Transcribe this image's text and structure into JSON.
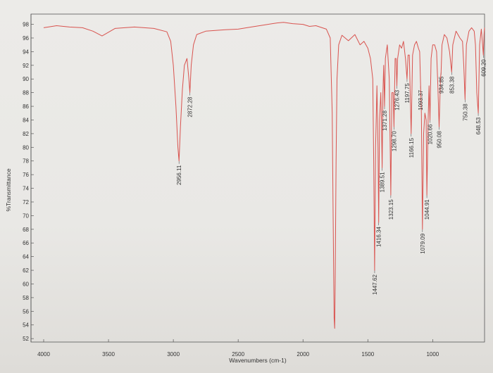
{
  "chart_data": {
    "type": "line",
    "title": "",
    "xlabel": "Wavenumbers (cm-1)",
    "ylabel": "%Transmittance",
    "xlim": [
      4000,
      600
    ],
    "ylim": [
      51.5,
      99.5
    ],
    "x_ticks": [
      4000,
      3500,
      3000,
      2500,
      2000,
      1500,
      1000
    ],
    "y_ticks": [
      52,
      54,
      56,
      58,
      60,
      62,
      64,
      66,
      68,
      70,
      72,
      74,
      76,
      78,
      80,
      82,
      84,
      86,
      88,
      90,
      92,
      94,
      96,
      98
    ],
    "grid": false,
    "line_color": "#d9534f",
    "series": [
      {
        "name": "",
        "points": [
          [
            4000,
            97.5
          ],
          [
            3900,
            97.8
          ],
          [
            3800,
            97.6
          ],
          [
            3700,
            97.5
          ],
          [
            3620,
            97.0
          ],
          [
            3550,
            96.3
          ],
          [
            3450,
            97.4
          ],
          [
            3300,
            97.6
          ],
          [
            3150,
            97.4
          ],
          [
            3050,
            96.9
          ],
          [
            3020,
            95.5
          ],
          [
            3000,
            92.0
          ],
          [
            2980,
            86.0
          ],
          [
            2965,
            80.0
          ],
          [
            2956.11,
            78.0
          ],
          [
            2945,
            83.0
          ],
          [
            2930,
            88.5
          ],
          [
            2915,
            92.0
          ],
          [
            2895,
            93.0
          ],
          [
            2880,
            90.0
          ],
          [
            2872.28,
            88.0
          ],
          [
            2862,
            92.0
          ],
          [
            2845,
            95.0
          ],
          [
            2820,
            96.5
          ],
          [
            2750,
            97.0
          ],
          [
            2600,
            97.2
          ],
          [
            2500,
            97.3
          ],
          [
            2400,
            97.6
          ],
          [
            2300,
            97.9
          ],
          [
            2200,
            98.2
          ],
          [
            2150,
            98.3
          ],
          [
            2080,
            98.1
          ],
          [
            2000,
            98.0
          ],
          [
            1950,
            97.7
          ],
          [
            1900,
            97.8
          ],
          [
            1820,
            97.3
          ],
          [
            1790,
            96.0
          ],
          [
            1775,
            85.0
          ],
          [
            1768,
            70.0
          ],
          [
            1760,
            55.0
          ],
          [
            1756,
            53.5
          ],
          [
            1752,
            60.0
          ],
          [
            1745,
            78.0
          ],
          [
            1738,
            90.0
          ],
          [
            1725,
            95.0
          ],
          [
            1700,
            96.4
          ],
          [
            1650,
            95.6
          ],
          [
            1600,
            96.5
          ],
          [
            1560,
            95.0
          ],
          [
            1530,
            95.5
          ],
          [
            1500,
            94.5
          ],
          [
            1480,
            93.0
          ],
          [
            1462,
            90.0
          ],
          [
            1455,
            78.0
          ],
          [
            1447.62,
            62.0
          ],
          [
            1440,
            80.0
          ],
          [
            1430,
            89.0
          ],
          [
            1422,
            80.0
          ],
          [
            1416.34,
            69.0
          ],
          [
            1410,
            84.0
          ],
          [
            1400,
            88.0
          ],
          [
            1395,
            84.0
          ],
          [
            1389.51,
            77.0
          ],
          [
            1384,
            88.0
          ],
          [
            1378,
            92.0
          ],
          [
            1371.28,
            86.0
          ],
          [
            1365,
            93.0
          ],
          [
            1350,
            95.0
          ],
          [
            1335,
            90.0
          ],
          [
            1323.15,
            73.0
          ],
          [
            1315,
            88.0
          ],
          [
            1305,
            88.0
          ],
          [
            1298.7,
            83.0
          ],
          [
            1290,
            93.0
          ],
          [
            1282,
            93.0
          ],
          [
            1276.43,
            89.0
          ],
          [
            1270,
            93.0
          ],
          [
            1255,
            95.0
          ],
          [
            1240,
            94.5
          ],
          [
            1225,
            95.5
          ],
          [
            1210,
            93.0
          ],
          [
            1197.75,
            90.0
          ],
          [
            1190,
            93.5
          ],
          [
            1180,
            93.5
          ],
          [
            1166.15,
            82.0
          ],
          [
            1155,
            93.5
          ],
          [
            1140,
            95.0
          ],
          [
            1125,
            95.5
          ],
          [
            1110,
            94.5
          ],
          [
            1100,
            94.0
          ],
          [
            1093.37,
            89.0
          ],
          [
            1087,
            85.0
          ],
          [
            1079.09,
            68.0
          ],
          [
            1070,
            82.0
          ],
          [
            1060,
            85.0
          ],
          [
            1050,
            84.0
          ],
          [
            1044.91,
            73.0
          ],
          [
            1035,
            84.0
          ],
          [
            1028,
            89.0
          ],
          [
            1020.66,
            84.0
          ],
          [
            1012,
            93.0
          ],
          [
            1000,
            95.0
          ],
          [
            985,
            95.0
          ],
          [
            970,
            94.0
          ],
          [
            960,
            89.0
          ],
          [
            950.08,
            83.0
          ],
          [
            940,
            90.0
          ],
          [
            934.85,
            91.0
          ],
          [
            928,
            95.0
          ],
          [
            910,
            96.5
          ],
          [
            890,
            96.0
          ],
          [
            870,
            94.0
          ],
          [
            853.38,
            91.0
          ],
          [
            845,
            95.0
          ],
          [
            820,
            97.0
          ],
          [
            790,
            96.0
          ],
          [
            770,
            95.5
          ],
          [
            760,
            92.0
          ],
          [
            750.38,
            87.0
          ],
          [
            740,
            95.0
          ],
          [
            720,
            97.0
          ],
          [
            700,
            97.5
          ],
          [
            680,
            97.0
          ],
          [
            670,
            95.0
          ],
          [
            660,
            88.0
          ],
          [
            648.53,
            85.0
          ],
          [
            638,
            95.0
          ],
          [
            625,
            97.3
          ],
          [
            615,
            95.0
          ],
          [
            609.2,
            93.5
          ],
          [
            604,
            96.5
          ],
          [
            600,
            97.5
          ]
        ]
      }
    ],
    "peak_labels": [
      {
        "label": "2956.11",
        "x": 2956.11,
        "y": 78.0
      },
      {
        "label": "2872.28",
        "x": 2872.28,
        "y": 88.0
      },
      {
        "label": "1447.62",
        "x": 1447.62,
        "y": 62.0
      },
      {
        "label": "1416.34",
        "x": 1416.34,
        "y": 69.0
      },
      {
        "label": "1389.51",
        "x": 1389.51,
        "y": 77.0
      },
      {
        "label": "1371.28",
        "x": 1371.28,
        "y": 86.0
      },
      {
        "label": "1323.15",
        "x": 1323.15,
        "y": 73.0
      },
      {
        "label": "1298.70",
        "x": 1298.7,
        "y": 83.0
      },
      {
        "label": "1276.43",
        "x": 1276.43,
        "y": 89.0
      },
      {
        "label": "1197.75",
        "x": 1197.75,
        "y": 90.0
      },
      {
        "label": "1166.15",
        "x": 1166.15,
        "y": 82.0
      },
      {
        "label": "1093.37",
        "x": 1093.37,
        "y": 89.0
      },
      {
        "label": "1079.09",
        "x": 1079.09,
        "y": 68.0
      },
      {
        "label": "1044.91",
        "x": 1044.91,
        "y": 73.0
      },
      {
        "label": "1020.66",
        "x": 1020.66,
        "y": 84.0
      },
      {
        "label": "950.08",
        "x": 950.08,
        "y": 83.0
      },
      {
        "label": "934.85",
        "x": 934.85,
        "y": 91.0
      },
      {
        "label": "853.38",
        "x": 853.38,
        "y": 91.0
      },
      {
        "label": "750.38",
        "x": 750.38,
        "y": 87.0
      },
      {
        "label": "648.53",
        "x": 648.53,
        "y": 85.0
      },
      {
        "label": "609.20",
        "x": 609.2,
        "y": 93.5
      }
    ]
  }
}
